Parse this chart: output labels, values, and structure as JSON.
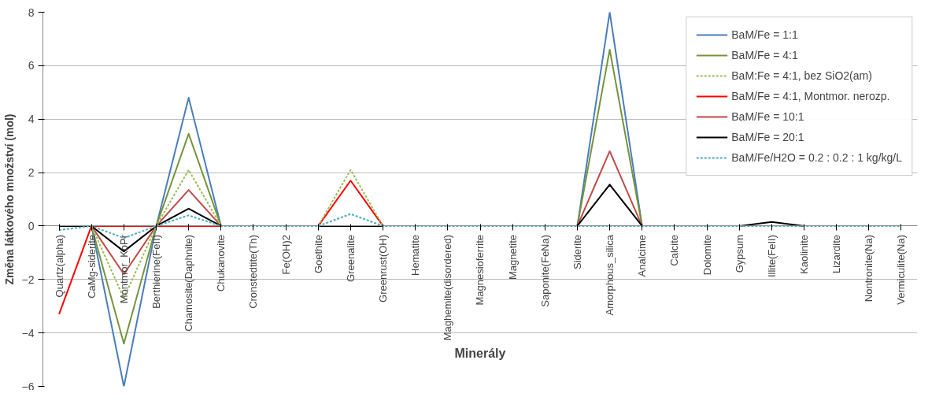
{
  "chart_data": {
    "type": "line",
    "xlabel": "Minerály",
    "ylabel": "Změna látkového množství (mol)",
    "categories": [
      "Quartz(alpha)",
      "CaMg-siderite",
      "Montmor_KoPr",
      "Berthierine(FeII)",
      "Chamosite(Daphnite)",
      "Chukanovite",
      "Cronstedtite(Th)",
      "Fe(OH)2",
      "Goethite",
      "Greenalite",
      "Greenrust(OH)",
      "Hematite",
      "Maghemite(disordered)",
      "Magnesioferrite",
      "Magnetite",
      "Saponite(FeNa)",
      "Siderite",
      "Amorphous_silica",
      "Analcime",
      "Calcite",
      "Dolomite",
      "Gypsum",
      "Illite(FeII)",
      "Kaolinite",
      "Lizardite",
      "Nontronite(Na)",
      "Vermiculite(Na)"
    ],
    "series": [
      {
        "name": "BaM/Fe = 1:1",
        "color": "#4a7ebb",
        "line_style": "solid",
        "values": [
          null,
          0,
          -6,
          0,
          4.8,
          0,
          null,
          null,
          null,
          null,
          null,
          null,
          null,
          null,
          null,
          null,
          0,
          8,
          0,
          null,
          null,
          null,
          null,
          null,
          null,
          null,
          null
        ]
      },
      {
        "name": "BaM/Fe = 4:1",
        "color": "#77933c",
        "line_style": "solid",
        "values": [
          null,
          0,
          -4.4,
          0,
          3.45,
          0,
          null,
          null,
          null,
          null,
          null,
          null,
          null,
          null,
          null,
          null,
          0,
          6.6,
          0,
          null,
          null,
          null,
          null,
          null,
          null,
          null,
          null
        ]
      },
      {
        "name": "BaM:Fe = 4:1, bez SiO2(am)",
        "color": "#9bbb59",
        "line_style": "dashed",
        "values": [
          null,
          0,
          -2.7,
          0,
          2.1,
          0,
          null,
          null,
          0,
          2.1,
          0,
          null,
          null,
          null,
          null,
          null,
          null,
          null,
          null,
          null,
          null,
          null,
          null,
          null,
          null,
          null,
          null
        ]
      },
      {
        "name": "BaM/Fe = 4:1, Montmor. nerozp.",
        "color": "#ff0000",
        "line_style": "solid",
        "values": [
          -3.3,
          0,
          0,
          0,
          0,
          0,
          null,
          null,
          0,
          1.7,
          0,
          null,
          null,
          null,
          null,
          null,
          null,
          null,
          null,
          null,
          null,
          null,
          null,
          null,
          null,
          null,
          null
        ]
      },
      {
        "name": "BaM/Fe = 10:1",
        "color": "#be4b48",
        "line_style": "solid",
        "values": [
          null,
          0,
          -1.8,
          0,
          1.35,
          0,
          null,
          null,
          null,
          null,
          null,
          null,
          null,
          null,
          null,
          null,
          0,
          2.8,
          0,
          null,
          null,
          null,
          null,
          null,
          null,
          null,
          null
        ]
      },
      {
        "name": "BaM/Fe = 20:1",
        "color": "#000000",
        "line_style": "solid",
        "values": [
          0,
          0,
          -0.95,
          0,
          0.65,
          0,
          null,
          null,
          0,
          0,
          0,
          null,
          null,
          null,
          null,
          null,
          0,
          1.55,
          0,
          null,
          null,
          0,
          0.15,
          0,
          null,
          null,
          null
        ]
      },
      {
        "name": "BaM/Fe/H2O = 0.2 : 0.2 : 1 kg/kg/L",
        "color": "#4bacc6",
        "line_style": "dashed",
        "values": [
          -0.15,
          0,
          -0.45,
          0,
          0.4,
          0,
          0,
          0,
          0,
          0.45,
          0,
          0,
          0,
          0,
          0,
          0,
          0,
          0,
          0,
          0,
          0,
          0,
          0,
          0,
          0,
          0,
          0
        ]
      }
    ],
    "ylim": [
      -6,
      8
    ],
    "yticks": [
      -6,
      -4,
      -2,
      0,
      2,
      4,
      6,
      8
    ],
    "grid": "y",
    "legend": "top right"
  }
}
